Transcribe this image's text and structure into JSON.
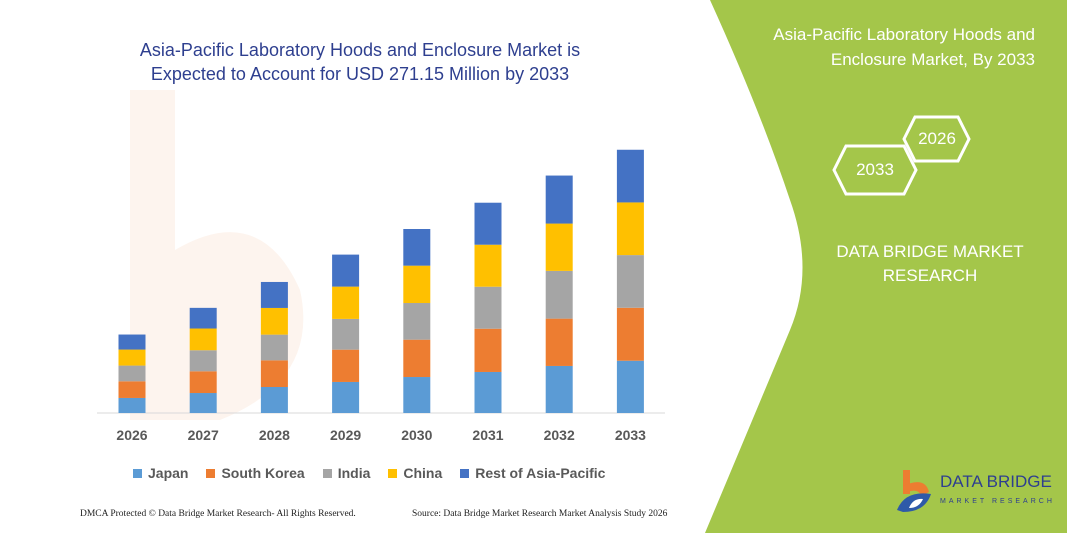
{
  "colors": {
    "green_panel": "#a4c64a",
    "title": "#2e3f8f",
    "japan": "#5b9bd5",
    "south_korea": "#ed7d31",
    "india": "#a5a5a5",
    "china": "#ffc000",
    "rest": "#4472c4"
  },
  "right_panel": {
    "title": "Asia-Pacific Laboratory Hoods and Enclosure Market, By 2033",
    "hex_start": "2026",
    "hex_end": "2033",
    "brand": "DATA BRIDGE MARKET RESEARCH"
  },
  "logo": {
    "name": "DATA BRIDGE",
    "sub": "MARKET RESEARCH"
  },
  "footer": {
    "left": "DMCA Protected © Data Bridge Market Research-  All Rights Reserved.",
    "right": "Source: Data Bridge Market Research  Market Analysis Study 2026"
  },
  "chart_data": {
    "type": "bar",
    "stacked": true,
    "title": "Asia-Pacific Laboratory Hoods and Enclosure Market is Expected to Account for USD 271.15 Million by 2033",
    "xlabel": "",
    "ylabel": "",
    "grid": false,
    "legend": "bottom",
    "categories": [
      "2026",
      "2027",
      "2028",
      "2029",
      "2030",
      "2031",
      "2032",
      "2033"
    ],
    "series": [
      {
        "name": "Japan",
        "color": "#5b9bd5",
        "values": [
          15.5,
          20.6,
          26.8,
          32.0,
          37.1,
          42.3,
          48.5,
          53.9
        ]
      },
      {
        "name": "South Korea",
        "color": "#ed7d31",
        "values": [
          17.2,
          22.4,
          27.5,
          33.3,
          38.5,
          44.6,
          48.8,
          54.6
        ]
      },
      {
        "name": "India",
        "color": "#a5a5a5",
        "values": [
          16.2,
          21.7,
          26.5,
          31.7,
          37.8,
          43.3,
          49.2,
          54.3
        ]
      },
      {
        "name": "China",
        "color": "#ffc000",
        "values": [
          16.5,
          22.4,
          27.5,
          33.3,
          38.5,
          43.3,
          48.8,
          54.3
        ]
      },
      {
        "name": "Rest of Asia-Pacific",
        "color": "#4472c4",
        "values": [
          15.5,
          21.3,
          26.8,
          33.0,
          37.8,
          43.3,
          49.5,
          54.3
        ]
      }
    ],
    "ylim": [
      0,
      271.15
    ]
  }
}
